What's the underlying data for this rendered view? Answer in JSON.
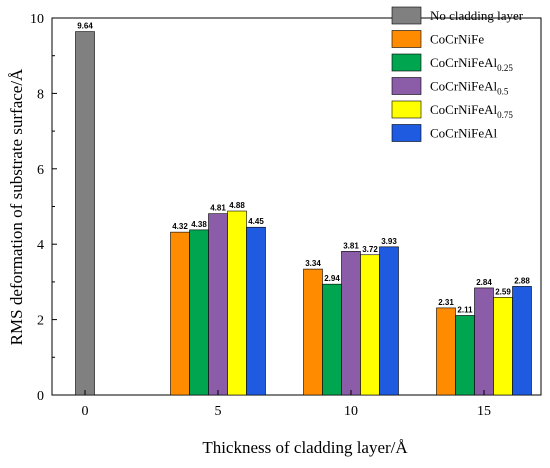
{
  "chart_data": {
    "type": "bar",
    "xlabel": "Thickness of cladding layer/Å",
    "ylabel": "RMS deformation of substrate surface/Å",
    "ylim": [
      0,
      10
    ],
    "yticks": [
      "0",
      "2",
      "4",
      "6",
      "8",
      "10"
    ],
    "categories": [
      "0",
      "5",
      "10",
      "15"
    ],
    "grid": false,
    "legend_position": "top-right",
    "series": [
      {
        "name": "No cladding layer",
        "sub": "",
        "color": "#808080",
        "values": [
          9.64,
          null,
          null,
          null
        ],
        "labels": [
          "9.64",
          "",
          "",
          ""
        ]
      },
      {
        "name": "CoCrNiFe",
        "sub": "",
        "color": "#FF8C00",
        "values": [
          null,
          4.32,
          3.34,
          2.31
        ],
        "labels": [
          "",
          "4.32",
          "3.34",
          "2.31"
        ]
      },
      {
        "name": "CoCrNiFeAl",
        "sub": "0.25",
        "color": "#00A550",
        "values": [
          null,
          4.38,
          2.94,
          2.11
        ],
        "labels": [
          "",
          "4.38",
          "2.94",
          "2.11"
        ]
      },
      {
        "name": "CoCrNiFeAl",
        "sub": "0.5",
        "color": "#8B5CA8",
        "values": [
          null,
          4.81,
          3.81,
          2.84
        ],
        "labels": [
          "",
          "4.81",
          "3.81",
          "2.84"
        ]
      },
      {
        "name": "CoCrNiFeAl",
        "sub": "0.75",
        "color": "#FFFF00",
        "values": [
          null,
          4.88,
          3.72,
          2.59
        ],
        "labels": [
          "",
          "4.88",
          "3.72",
          "2.59"
        ]
      },
      {
        "name": "CoCrNiFeAl",
        "sub": "",
        "color": "#1F5BE0",
        "values": [
          null,
          4.45,
          3.93,
          2.88
        ],
        "labels": [
          "",
          "4.45",
          "3.93",
          "2.88"
        ]
      }
    ]
  }
}
